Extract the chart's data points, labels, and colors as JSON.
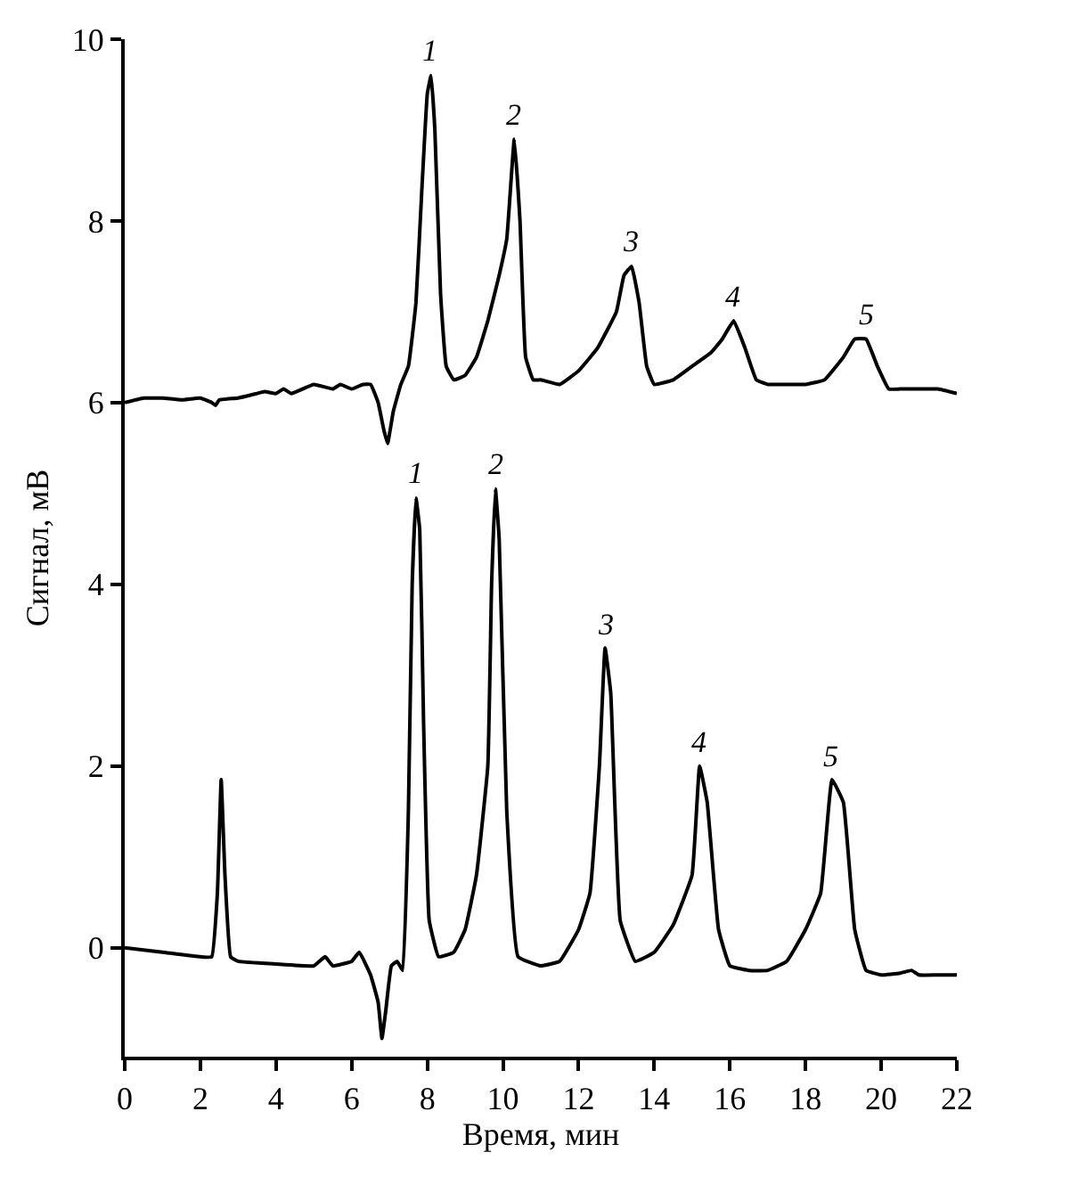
{
  "chart_data": {
    "type": "line",
    "xlabel": "Время, мин",
    "ylabel": "Сигнал, мВ",
    "xlim": [
      0,
      22
    ],
    "xticks": [
      0,
      2,
      4,
      6,
      8,
      10,
      12,
      14,
      16,
      18,
      20,
      22
    ],
    "ylim": [
      -1.2,
      10
    ],
    "yticks": [
      0,
      2,
      4,
      6,
      8,
      10
    ],
    "legend": false,
    "marker": "none",
    "line_style": "solid",
    "series": [
      {
        "color": "#000000",
        "x": [
          0,
          0.5,
          1,
          1.5,
          2,
          2.3,
          2.4,
          2.5,
          3,
          3.5,
          3.7,
          4,
          4.2,
          4.4,
          5,
          5.5,
          5.7,
          6,
          6.3,
          6.5,
          6.7,
          6.85,
          6.95,
          7.1,
          7.3,
          7.5,
          7.7,
          7.85,
          8.0,
          8.1,
          8.2,
          8.35,
          8.5,
          8.7,
          9,
          9.3,
          9.6,
          9.9,
          10.1,
          10.3,
          10.45,
          10.6,
          10.8,
          11,
          11.5,
          12,
          12.5,
          13,
          13.2,
          13.4,
          13.6,
          13.8,
          14,
          14.5,
          15,
          15.5,
          15.8,
          16.1,
          16.4,
          16.7,
          17,
          17.5,
          18,
          18.5,
          19,
          19.3,
          19.6,
          19.9,
          20.2,
          20.5,
          21,
          21.5,
          22
        ],
        "values": [
          6.0,
          6.05,
          6.05,
          6.03,
          6.05,
          6.0,
          5.97,
          6.03,
          6.05,
          6.1,
          6.12,
          6.1,
          6.15,
          6.1,
          6.2,
          6.15,
          6.2,
          6.15,
          6.2,
          6.2,
          6.0,
          5.7,
          5.55,
          5.9,
          6.2,
          6.4,
          7.1,
          8.3,
          9.4,
          9.6,
          9.0,
          7.2,
          6.4,
          6.25,
          6.3,
          6.5,
          6.9,
          7.4,
          7.8,
          8.9,
          8.0,
          6.5,
          6.25,
          6.25,
          6.2,
          6.35,
          6.6,
          7.0,
          7.4,
          7.5,
          7.1,
          6.4,
          6.2,
          6.25,
          6.4,
          6.55,
          6.7,
          6.9,
          6.6,
          6.25,
          6.2,
          6.2,
          6.2,
          6.25,
          6.5,
          6.7,
          6.7,
          6.4,
          6.15,
          6.15,
          6.15,
          6.15,
          6.1
        ]
      },
      {
        "color": "#000000",
        "x": [
          0,
          1,
          2,
          2.3,
          2.45,
          2.55,
          2.65,
          2.8,
          3,
          4,
          5,
          5.3,
          5.5,
          6,
          6.2,
          6.5,
          6.7,
          6.8,
          6.9,
          7.05,
          7.2,
          7.35,
          7.5,
          7.6,
          7.7,
          7.8,
          7.9,
          8.05,
          8.3,
          8.7,
          9,
          9.3,
          9.6,
          9.7,
          9.8,
          9.9,
          10.1,
          10.4,
          11,
          11.5,
          12,
          12.3,
          12.55,
          12.7,
          12.85,
          13.1,
          13.5,
          14,
          14.5,
          15,
          15.2,
          15.4,
          15.7,
          16,
          16.5,
          17,
          17.5,
          18,
          18.4,
          18.7,
          19,
          19.3,
          19.6,
          20,
          20.5,
          20.8,
          21,
          21.5,
          22
        ],
        "values": [
          0,
          -0.05,
          -0.1,
          -0.1,
          0.6,
          1.85,
          0.8,
          -0.1,
          -0.15,
          -0.18,
          -0.2,
          -0.1,
          -0.2,
          -0.15,
          -0.05,
          -0.3,
          -0.6,
          -1.0,
          -0.7,
          -0.2,
          -0.15,
          -0.25,
          1.5,
          4.0,
          4.95,
          4.6,
          2.5,
          0.3,
          -0.1,
          -0.05,
          0.2,
          0.8,
          2.0,
          4.0,
          5.05,
          4.5,
          1.5,
          -0.1,
          -0.2,
          -0.15,
          0.2,
          0.6,
          2.0,
          3.3,
          2.8,
          0.3,
          -0.15,
          -0.05,
          0.25,
          0.8,
          2.0,
          1.6,
          0.2,
          -0.2,
          -0.25,
          -0.25,
          -0.15,
          0.2,
          0.6,
          1.85,
          1.6,
          0.2,
          -0.25,
          -0.3,
          -0.28,
          -0.25,
          -0.3,
          -0.3,
          -0.3
        ]
      }
    ],
    "annotations": [
      {
        "text": "1",
        "x": 8.1,
        "y": 9.6
      },
      {
        "text": "2",
        "x": 10.3,
        "y": 8.9
      },
      {
        "text": "3",
        "x": 13.4,
        "y": 7.5
      },
      {
        "text": "4",
        "x": 16.1,
        "y": 6.9
      },
      {
        "text": "5",
        "x": 19.6,
        "y": 6.7
      },
      {
        "text": "1",
        "x": 7.7,
        "y": 4.95
      },
      {
        "text": "2",
        "x": 9.8,
        "y": 5.05
      },
      {
        "text": "3",
        "x": 12.7,
        "y": 3.3
      },
      {
        "text": "4",
        "x": 15.2,
        "y": 2.0
      },
      {
        "text": "5",
        "x": 18.7,
        "y": 1.85
      }
    ]
  }
}
